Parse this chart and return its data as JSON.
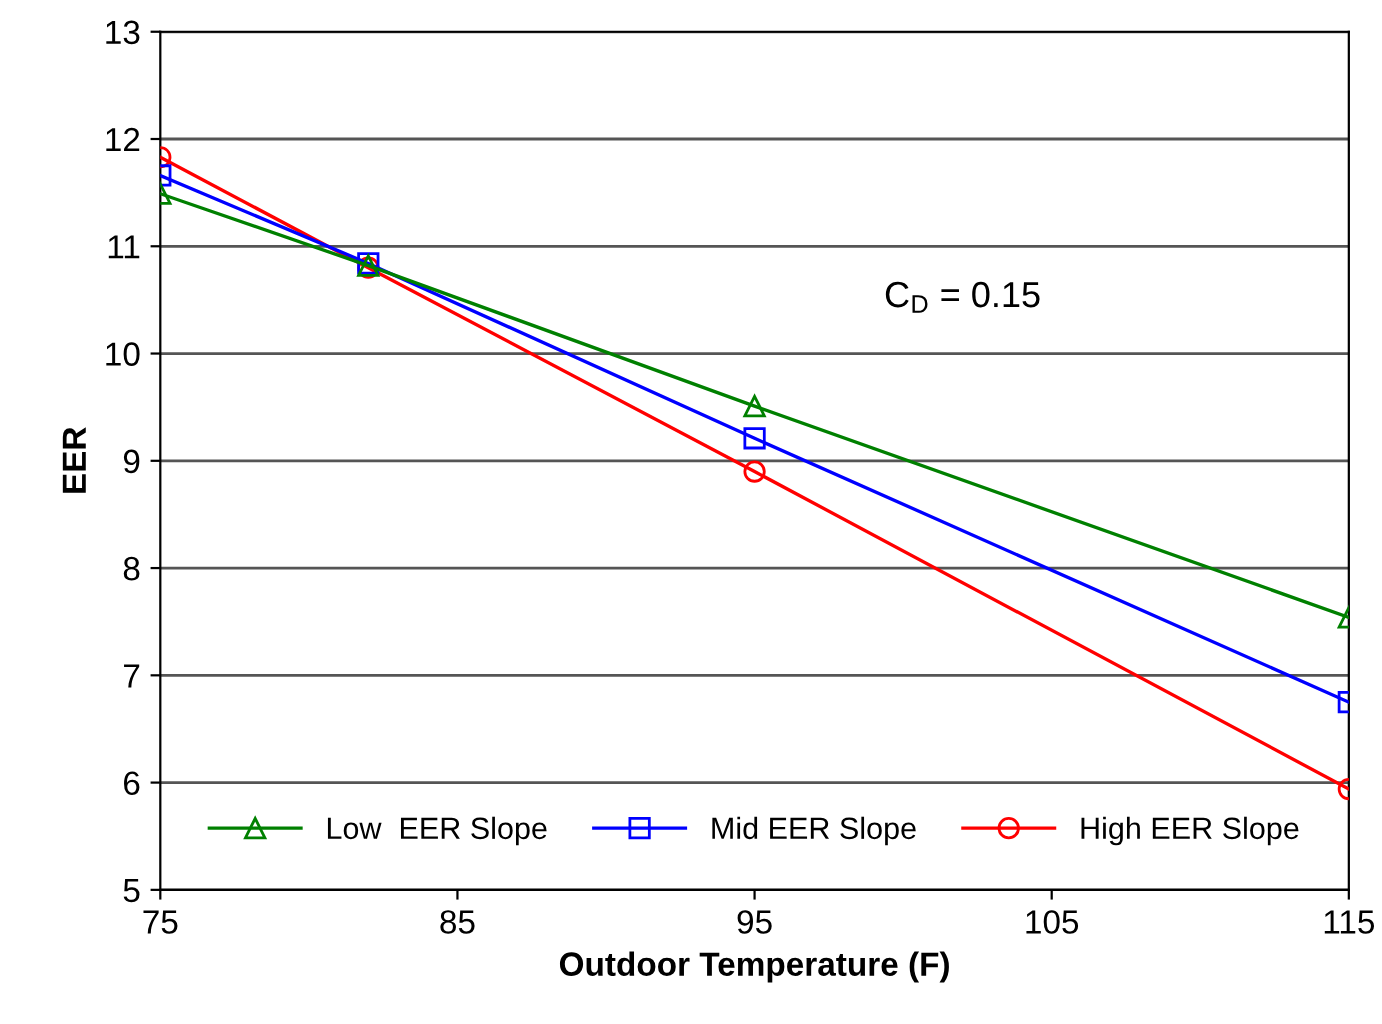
{
  "chart_data": {
    "type": "line",
    "xlabel": "Outdoor Temperature (F)",
    "ylabel": "EER",
    "x": [
      75,
      82,
      95,
      115
    ],
    "series": [
      {
        "name": "Low  EER Slope",
        "color": "#008000",
        "marker": "triangle",
        "values": [
          11.49,
          10.82,
          9.51,
          7.54
        ]
      },
      {
        "name": "Mid EER Slope",
        "color": "#0000ff",
        "marker": "square",
        "values": [
          11.66,
          10.84,
          9.21,
          6.75
        ]
      },
      {
        "name": "High EER Slope",
        "color": "#ff0000",
        "marker": "circle",
        "values": [
          11.83,
          10.8,
          8.9,
          5.94
        ]
      }
    ],
    "xlim": [
      75,
      115
    ],
    "xticks": [
      75,
      85,
      95,
      105,
      115
    ],
    "ylim": [
      5,
      13
    ],
    "yticks": [
      5,
      6,
      7,
      8,
      9,
      10,
      11,
      12,
      13
    ],
    "grid": "y",
    "legend": "bottom",
    "line_style": "solid",
    "annotations": [
      "C$_{D}$ = 0.15"
    ]
  }
}
